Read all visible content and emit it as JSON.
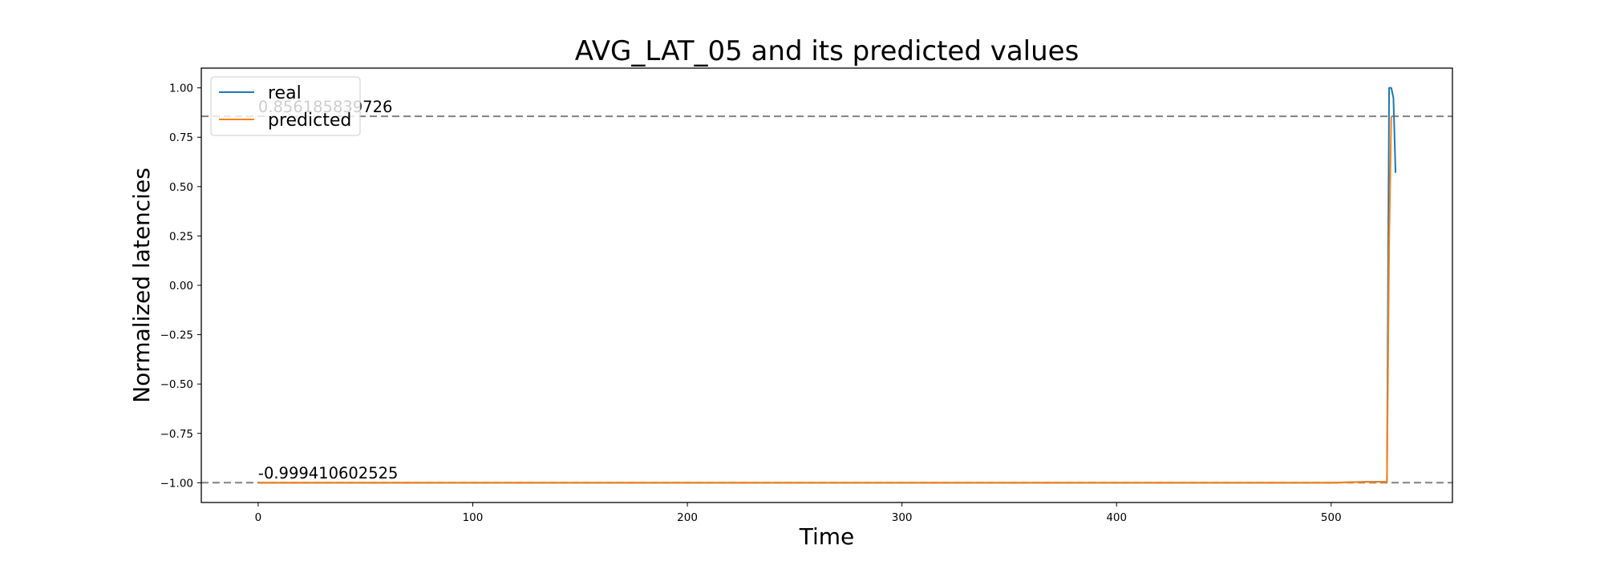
{
  "chart_data": {
    "type": "line",
    "title": "AVG_LAT_05 and its predicted values",
    "xlabel": "Time",
    "ylabel": "Normalized latencies",
    "xlim": [
      -26.5,
      556.5
    ],
    "ylim": [
      -1.1,
      1.1
    ],
    "xticks": [
      0,
      100,
      200,
      300,
      400,
      500
    ],
    "yticks": [
      1.0,
      0.75,
      0.5,
      0.25,
      0.0,
      -0.25,
      -0.5,
      -0.75,
      -1.0
    ],
    "ytick_labels": [
      "1.00",
      "0.75",
      "0.50",
      "0.25",
      "0.00",
      "−0.25",
      "−0.50",
      "−0.75",
      "−1.00"
    ],
    "xtick_labels": [
      "0",
      "100",
      "200",
      "300",
      "400",
      "500"
    ],
    "grid": false,
    "legend_position": "top-left",
    "series": [
      {
        "name": "real",
        "color": "#1f77b4",
        "x": [
          0,
          50,
          100,
          150,
          200,
          250,
          300,
          350,
          400,
          450,
          500,
          516,
          526,
          527,
          528,
          529,
          530
        ],
        "y": [
          -1.0,
          -1.0,
          -1.0,
          -1.0,
          -1.0,
          -1.0,
          -1.0,
          -1.0,
          -1.0,
          -1.0,
          -1.0,
          -0.995,
          -0.995,
          1.0,
          1.0,
          0.95,
          0.57
        ]
      },
      {
        "name": "predicted",
        "color": "#ff7f0e",
        "x": [
          0,
          50,
          100,
          150,
          200,
          250,
          300,
          350,
          400,
          450,
          500,
          516,
          526,
          527,
          528
        ],
        "y": [
          -0.9994,
          -0.9994,
          -0.9994,
          -0.9994,
          -0.9994,
          -0.9994,
          -0.9994,
          -0.9994,
          -0.9994,
          -0.9994,
          -0.9994,
          -0.996,
          -0.996,
          0.2,
          0.856
        ]
      }
    ],
    "hlines": [
      {
        "y": 0.856185839726,
        "label": "0.856185839726",
        "color": "#808080"
      },
      {
        "y": -0.999410602525,
        "label": "-0.999410602525",
        "color": "#808080"
      }
    ]
  }
}
